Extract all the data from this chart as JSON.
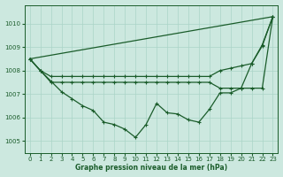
{
  "title": "Graphe pression niveau de la mer (hPa)",
  "background_color": "#cce8df",
  "grid_color": "#aad4c8",
  "line_color": "#1a5c2a",
  "xlim": [
    -0.5,
    23.5
  ],
  "ylim": [
    1004.5,
    1010.8
  ],
  "yticks": [
    1005,
    1006,
    1007,
    1008,
    1009,
    1010
  ],
  "xticks": [
    0,
    1,
    2,
    3,
    4,
    5,
    6,
    7,
    8,
    9,
    10,
    11,
    12,
    13,
    14,
    15,
    16,
    17,
    18,
    19,
    20,
    21,
    22,
    23
  ],
  "line1_x": [
    0,
    23
  ],
  "line1_y": [
    1008.5,
    1010.3
  ],
  "line2_x": [
    0,
    1,
    2,
    3,
    4,
    5,
    6,
    7,
    8,
    9,
    10,
    11,
    12,
    13,
    14,
    15,
    16,
    17,
    18,
    19,
    20,
    21,
    22,
    23
  ],
  "line2_y": [
    1008.5,
    1008.0,
    1007.75,
    1007.75,
    1007.75,
    1007.75,
    1007.75,
    1007.75,
    1007.75,
    1007.75,
    1007.75,
    1007.75,
    1007.75,
    1007.75,
    1007.75,
    1007.75,
    1007.75,
    1007.75,
    1008.0,
    1008.1,
    1008.2,
    1008.3,
    1009.1,
    1010.3
  ],
  "line3_x": [
    0,
    1,
    2,
    3,
    4,
    5,
    6,
    7,
    8,
    9,
    10,
    11,
    12,
    13,
    14,
    15,
    16,
    17,
    18,
    19,
    20,
    21,
    22,
    23
  ],
  "line3_y": [
    1008.5,
    1008.0,
    1007.5,
    1007.5,
    1007.5,
    1007.5,
    1007.5,
    1007.5,
    1007.5,
    1007.5,
    1007.5,
    1007.5,
    1007.5,
    1007.5,
    1007.5,
    1007.5,
    1007.5,
    1007.5,
    1007.25,
    1007.25,
    1007.25,
    1007.25,
    1007.25,
    1010.3
  ],
  "line4_x": [
    0,
    1,
    2,
    3,
    4,
    5,
    6,
    7,
    8,
    9,
    10,
    11,
    12,
    13,
    14,
    15,
    16,
    17,
    18,
    19,
    20,
    21,
    22,
    23
  ],
  "line4_y": [
    1008.5,
    1008.0,
    1007.55,
    1007.1,
    1006.8,
    1006.5,
    1006.3,
    1005.8,
    1005.7,
    1005.5,
    1005.15,
    1005.7,
    1006.6,
    1006.2,
    1006.15,
    1005.9,
    1005.8,
    1006.35,
    1007.05,
    1007.05,
    1007.25,
    1008.3,
    1009.05,
    1010.3
  ]
}
